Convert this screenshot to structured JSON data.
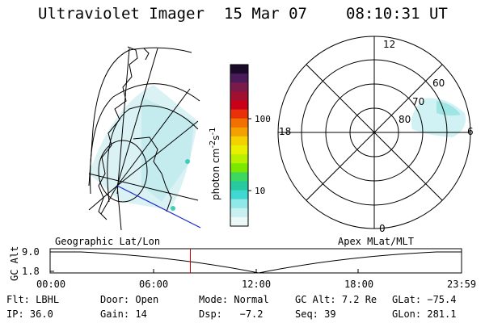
{
  "header": {
    "title": "Ultraviolet Imager",
    "date": "15 Mar 07",
    "time": "08:10:31 UT"
  },
  "colorbar": {
    "unit_prefix": "photon cm",
    "unit_exp1": "-2",
    "unit_mid": "s",
    "unit_exp2": "-1",
    "ticks": [
      "100",
      "10"
    ],
    "colors": [
      "#1a0a2a",
      "#4a1a5a",
      "#7a1a4a",
      "#a01030",
      "#c80018",
      "#e8300a",
      "#f07000",
      "#f4a000",
      "#f4d200",
      "#e8f000",
      "#b8f000",
      "#7ce800",
      "#3cd860",
      "#28c8a0",
      "#40d8d0",
      "#90e8e8",
      "#c8f0f0",
      "#ecf8f8"
    ]
  },
  "geo_panel": {
    "label": "Geographic Lat/Lon"
  },
  "polar_panel": {
    "label": "Apex MLat/MLT",
    "lat_labels": [
      "80",
      "70",
      "60"
    ],
    "mlt_labels": {
      "top": "12",
      "left": "18",
      "right": "6",
      "bottom": "0"
    }
  },
  "timeline": {
    "ylabel": "GC Alt",
    "yticks": [
      "9.0",
      "1.8"
    ],
    "xticks": [
      "00:00",
      "06:00",
      "12:00",
      "18:00",
      "23:59"
    ],
    "current_time_hours": 8.18,
    "marker_color": "#d00000"
  },
  "footer": {
    "row1": [
      {
        "label": "Flt:",
        "value": "LBHL"
      },
      {
        "label": "Door:",
        "value": "Open"
      },
      {
        "label": "Mode:",
        "value": "Normal"
      },
      {
        "label": "GC Alt:",
        "value": "7.2 Re"
      },
      {
        "label": "GLat:",
        "value": "−75.4"
      }
    ],
    "row2": [
      {
        "label": "IP:",
        "value": "36.0"
      },
      {
        "label": "Gain:",
        "value": "14"
      },
      {
        "label": "Dsp:",
        "value": "  −7.2"
      },
      {
        "label": "Seq:",
        "value": "39"
      },
      {
        "label": "GLon:",
        "value": "281.1"
      }
    ]
  }
}
